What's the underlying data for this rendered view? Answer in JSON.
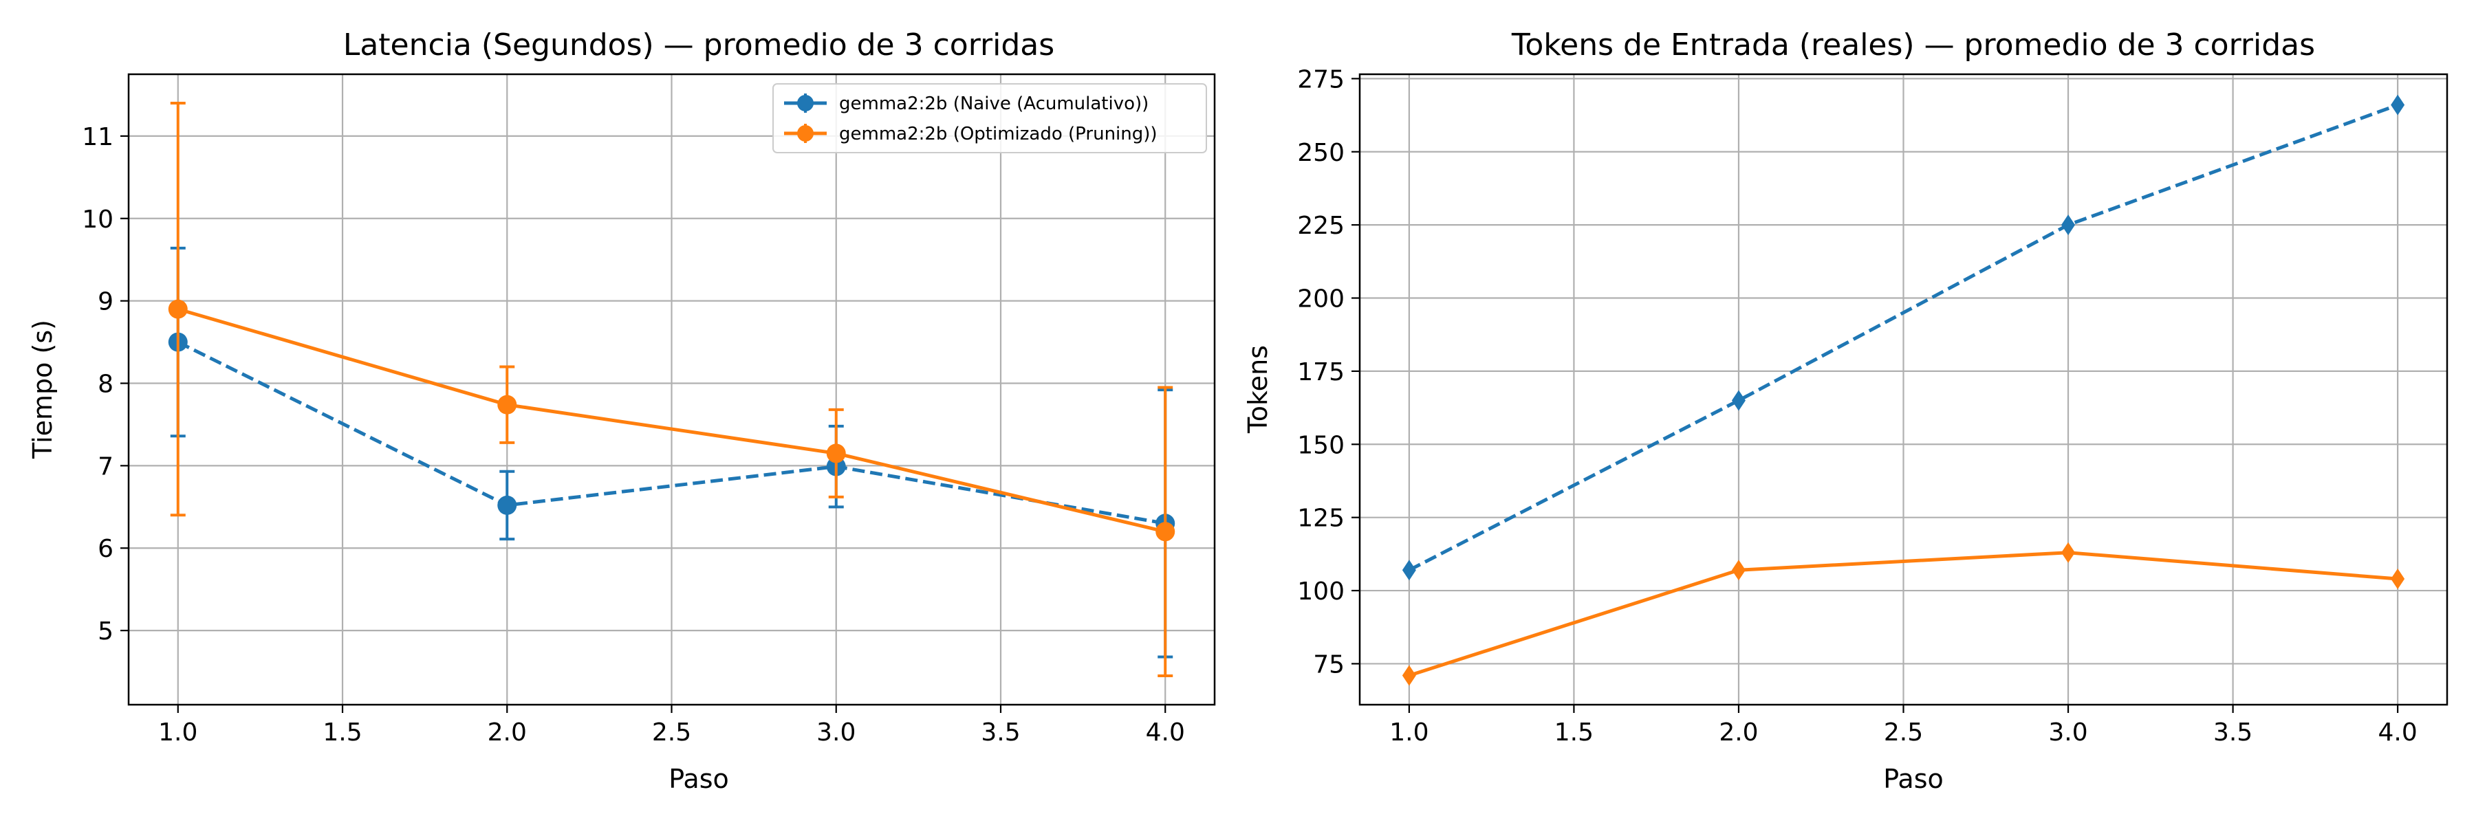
{
  "colors": {
    "blue": "#1f77b4",
    "orange": "#ff7f0e",
    "grid": "#b0b0b0"
  },
  "chart_data": [
    {
      "type": "line",
      "title": "Latencia (Segundos) — promedio de 3 corridas",
      "xlabel": "Paso",
      "ylabel": "Tiempo (s)",
      "xlim": [
        0.85,
        4.15
      ],
      "ylim": [
        4.1,
        11.75
      ],
      "xticks": [
        1.0,
        1.5,
        2.0,
        2.5,
        3.0,
        3.5,
        4.0
      ],
      "xtick_labels": [
        "1.0",
        "1.5",
        "2.0",
        "2.5",
        "3.0",
        "3.5",
        "4.0"
      ],
      "yticks": [
        5,
        6,
        7,
        8,
        9,
        10,
        11
      ],
      "ytick_labels": [
        "5",
        "6",
        "7",
        "8",
        "9",
        "10",
        "11"
      ],
      "grid": true,
      "legend_position": "top-right",
      "series": [
        {
          "name": "gemma2:2b (Naive (Acumulativo))",
          "color": "#1f77b4",
          "line_style": "dashed",
          "marker": "circle",
          "x": [
            1,
            2,
            3,
            4
          ],
          "y": [
            8.5,
            6.52,
            6.99,
            6.3
          ],
          "error": [
            1.14,
            0.41,
            0.49,
            1.62
          ]
        },
        {
          "name": "gemma2:2b (Optimizado (Pruning))",
          "color": "#ff7f0e",
          "line_style": "solid",
          "marker": "circle",
          "x": [
            1,
            2,
            3,
            4
          ],
          "y": [
            8.9,
            7.74,
            7.15,
            6.2
          ],
          "error": [
            2.5,
            0.46,
            0.53,
            1.75
          ]
        }
      ]
    },
    {
      "type": "line",
      "title": "Tokens de Entrada (reales) — promedio de 3 corridas",
      "xlabel": "Paso",
      "ylabel": "Tokens",
      "xlim": [
        0.85,
        4.15
      ],
      "ylim": [
        61,
        276.5
      ],
      "xticks": [
        1.0,
        1.5,
        2.0,
        2.5,
        3.0,
        3.5,
        4.0
      ],
      "xtick_labels": [
        "1.0",
        "1.5",
        "2.0",
        "2.5",
        "3.0",
        "3.5",
        "4.0"
      ],
      "yticks": [
        75,
        100,
        125,
        150,
        175,
        200,
        225,
        250,
        275
      ],
      "ytick_labels": [
        "75",
        "100",
        "125",
        "150",
        "175",
        "200",
        "225",
        "250",
        "275"
      ],
      "grid": true,
      "series": [
        {
          "color": "#1f77b4",
          "line_style": "dashed",
          "marker": "diamond",
          "x": [
            1,
            2,
            3,
            4
          ],
          "y": [
            107,
            165,
            225,
            266
          ]
        },
        {
          "color": "#ff7f0e",
          "line_style": "solid",
          "marker": "diamond",
          "x": [
            1,
            2,
            3,
            4
          ],
          "y": [
            71,
            107,
            113,
            104
          ]
        }
      ]
    }
  ]
}
